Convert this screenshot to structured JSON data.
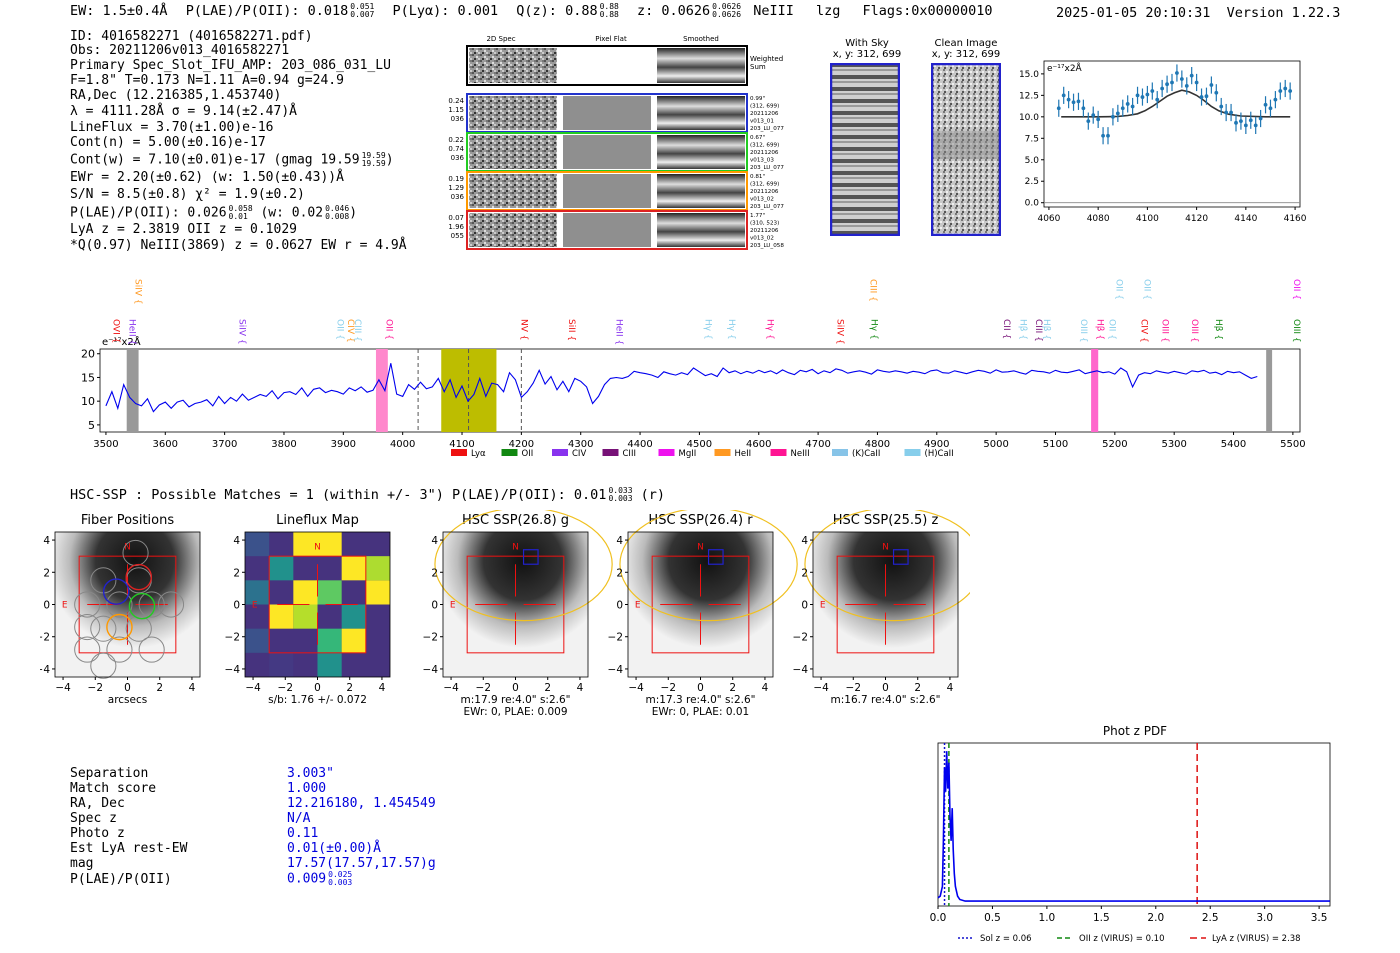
{
  "header": {
    "ew_prefix": "EW: 1.5±0.4Å",
    "plae_label": "P(LAE)/P(OII): 0.018",
    "plae_hi": "0.051",
    "plae_lo": "0.007",
    "plya": "P(Lyα): 0.001",
    "qz_label": "Q(z): 0.88",
    "qz_hi": "0.88",
    "qz_lo": "0.88",
    "z_label": "z: 0.0626",
    "z_hi": "0.0626",
    "z_lo": "0.0626",
    "line_name": "NeIII",
    "lzg": "lzg",
    "flags": "Flags:0x00000010",
    "datetime": "2025-01-05 20:10:31",
    "version": "Version 1.22.3"
  },
  "info": {
    "id": "ID: 4016582271 (4016582271.pdf)",
    "obs": "Obs: 20211206v013_4016582271",
    "primary": "Primary Spec_Slot_IFU_AMP: 203_086_031_LU",
    "fwhm": "F=1.8\"  T=0.173  N=1.11  A=0.94  g=24.9",
    "radec": "RA,Dec (12.216385,1.453740)",
    "lambda": "λ = 4111.28Å  σ = 9.14(±2.47)Å",
    "lineflux": "LineFlux = 3.70(±1.00)e-16",
    "contn": "Cont(n) = 5.00(±0.16)e-17",
    "contw": "Cont(w) = 7.10(±0.01)e-17 (gmag 19.59",
    "contw_hi": "19.59",
    "contw_lo": "19.59",
    "ewr": "EWr = 2.20(±0.62) (w: 1.50(±0.43))Å",
    "sn": "S/N = 8.5(±0.8)  χ² = 1.9(±0.2)",
    "plae": "P(LAE)/P(OII): 0.026",
    "plae_hi": "0.058",
    "plae_lo": "0.01",
    "plae_w": "(w: 0.02",
    "plae_w_hi": "0.046",
    "plae_w_lo": "0.008",
    "lya": "LyA z = 2.3819   OII z = 0.1029",
    "q": "*Q(0.97) NeIII(3869) z = 0.0627  EW r = 4.9Å"
  },
  "spec2d": {
    "col_headers": [
      "2D Spec",
      "Pixel Flat",
      "Smoothed"
    ],
    "weighted_label": "Weighted Sum",
    "rows": [
      {
        "left": [
          "0.24",
          "1.15",
          "036"
        ],
        "right": [
          "0.99\"",
          "(312, 699)",
          "20211206",
          "v013_01",
          "203_LU_077"
        ],
        "color": "#2233cc"
      },
      {
        "left": [
          "0.22",
          "0.74",
          "036"
        ],
        "right": [
          "0.67\"",
          "(312, 699)",
          "20211206",
          "v013_03",
          "203_LU_077"
        ],
        "color": "#22cc22"
      },
      {
        "left": [
          "0.19",
          "1.29",
          "036"
        ],
        "right": [
          "0.81\"",
          "(312, 699)",
          "20211206",
          "v013_02",
          "203_LU_077"
        ],
        "color": "#ff9900"
      },
      {
        "left": [
          "0.07",
          "1.96",
          "055"
        ],
        "right": [
          "1.77\"",
          "(310, 523)",
          "20211206",
          "v013_02",
          "203_LU_058"
        ],
        "color": "#dd2222"
      }
    ],
    "with_sky_title": "With Sky",
    "with_sky_sub": "x, y: 312, 699",
    "clean_title": "Clean Image",
    "clean_sub": "x, y: 312, 699"
  },
  "zoom_chart": {
    "unit_label": "e⁻¹⁷x2Å",
    "xticks": [
      "4060",
      "4080",
      "4100",
      "4120",
      "4140",
      "4160"
    ],
    "yticks": [
      "0.0",
      "2.5",
      "5.0",
      "7.5",
      "10.0",
      "12.5",
      "15.0"
    ]
  },
  "full_spectrum": {
    "unit_label": "e⁻¹⁷x2Å",
    "yticks": [
      "5",
      "10",
      "15",
      "20"
    ],
    "xticks": [
      "3500",
      "3600",
      "3700",
      "3800",
      "3900",
      "4000",
      "4100",
      "4200",
      "4300",
      "4400",
      "4500",
      "4600",
      "4700",
      "4800",
      "4900",
      "5000",
      "5100",
      "5200",
      "5300",
      "5400",
      "5500"
    ],
    "legend": [
      {
        "name": "Lyα",
        "color": "#ee1111"
      },
      {
        "name": "OII",
        "color": "#118811"
      },
      {
        "name": "CIV",
        "color": "#8833ee"
      },
      {
        "name": "CIII",
        "color": "#771177"
      },
      {
        "name": "MgII",
        "color": "#ee11ee"
      },
      {
        "name": "HeII",
        "color": "#ff9922"
      },
      {
        "name": "NeIII",
        "color": "#ff1493"
      },
      {
        "name": "(K)CaII",
        "color": "#87c4e8"
      },
      {
        "name": "(H)CaII",
        "color": "#87ceeb"
      }
    ],
    "line_labels": [
      {
        "text": "SiIV",
        "x": 3545,
        "row": 0,
        "color": "#ff9922"
      },
      {
        "text": "OVI",
        "x": 3508,
        "row": 1,
        "color": "#ee1111"
      },
      {
        "text": "HeII",
        "x": 3535,
        "row": 1,
        "color": "#8833ee"
      },
      {
        "text": "SiIV",
        "x": 3720,
        "row": 1,
        "color": "#8833ee"
      },
      {
        "text": "OII",
        "x": 3885,
        "row": 1,
        "color": "#87ceeb"
      },
      {
        "text": "CIV",
        "x": 3903,
        "row": 1,
        "color": "#ff9922"
      },
      {
        "text": "CIII",
        "x": 3915,
        "row": 1,
        "color": "#87ceeb"
      },
      {
        "text": "OII",
        "x": 3968,
        "row": 1,
        "color": "#ff1493"
      },
      {
        "text": "NV",
        "x": 4195,
        "row": 1,
        "color": "#ee1111"
      },
      {
        "text": "SiII",
        "x": 4275,
        "row": 1,
        "color": "#ee1111"
      },
      {
        "text": "HeII",
        "x": 4355,
        "row": 1,
        "color": "#8833ee"
      },
      {
        "text": "Hγ",
        "x": 4505,
        "row": 1,
        "color": "#87ceeb"
      },
      {
        "text": "Hγ",
        "x": 4545,
        "row": 1,
        "color": "#87ceeb"
      },
      {
        "text": "Hγ",
        "x": 4610,
        "row": 1,
        "color": "#ff1493"
      },
      {
        "text": "SiIV",
        "x": 4728,
        "row": 1,
        "color": "#ee1111"
      },
      {
        "text": "CIII",
        "x": 4783,
        "row": 0,
        "color": "#ff9922"
      },
      {
        "text": "Hγ",
        "x": 4785,
        "row": 1,
        "color": "#118811"
      },
      {
        "text": "CII",
        "x": 5008,
        "row": 1,
        "color": "#771177"
      },
      {
        "text": "Hβ",
        "x": 5036,
        "row": 1,
        "color": "#87ceeb"
      },
      {
        "text": "CIII",
        "x": 5062,
        "row": 1,
        "color": "#771177"
      },
      {
        "text": "Hβ",
        "x": 5076,
        "row": 1,
        "color": "#87ceeb"
      },
      {
        "text": "OIII",
        "x": 5138,
        "row": 1,
        "color": "#87ceeb"
      },
      {
        "text": "OII",
        "x": 5198,
        "row": 0,
        "color": "#87ceeb"
      },
      {
        "text": "Hβ",
        "x": 5166,
        "row": 1,
        "color": "#ff1493"
      },
      {
        "text": "OII",
        "x": 5186,
        "row": 1,
        "color": "#87ceeb"
      },
      {
        "text": "OII",
        "x": 5245,
        "row": 0,
        "color": "#87ceeb"
      },
      {
        "text": "CIV",
        "x": 5240,
        "row": 1,
        "color": "#ee1111"
      },
      {
        "text": "OIII",
        "x": 5275,
        "row": 1,
        "color": "#ff1493"
      },
      {
        "text": "OIII",
        "x": 5325,
        "row": 1,
        "color": "#ff1493"
      },
      {
        "text": "Hβ",
        "x": 5365,
        "row": 1,
        "color": "#118811"
      },
      {
        "text": "OII",
        "x": 5497,
        "row": 0,
        "color": "#ee11ee"
      },
      {
        "text": "OIII",
        "x": 5497,
        "row": 1,
        "color": "#118811"
      }
    ]
  },
  "hsc": {
    "header": "HSC-SSP : Possible Matches = 1 (within +/- 3\")  P(LAE)/P(OII): 0.01",
    "header_hi": "0.033",
    "header_lo": "0.003",
    "header_suffix": "(r)",
    "panels": [
      {
        "title": "Fiber Positions",
        "caption1": "arcsecs",
        "caption2": ""
      },
      {
        "title": "Lineflux Map",
        "caption1": "s/b: 1.76 +/- 0.072",
        "caption2": ""
      },
      {
        "title": "HSC SSP(26.8) g",
        "caption1": "m:17.9  re:4.0\"  s:2.6\"",
        "caption2": "EWr: 0, PLAE: 0.009"
      },
      {
        "title": "HSC SSP(26.4) r",
        "caption1": "m:17.3  re:4.0\"  s:2.6\"",
        "caption2": "EWr: 0, PLAE: 0.01"
      },
      {
        "title": "HSC SSP(25.5) z",
        "caption1": "m:16.7  re:4.0\"  s:2.6\"",
        "caption2": ""
      }
    ],
    "axis_ticks": [
      "−4",
      "−2",
      "0",
      "2",
      "4"
    ],
    "north": "N",
    "east": "E"
  },
  "match_table": [
    {
      "label": "Separation",
      "value": "3.003\""
    },
    {
      "label": "Match score",
      "value": "1.000"
    },
    {
      "label": "RA, Dec",
      "value": "12.216180, 1.454549"
    },
    {
      "label": "Spec z",
      "value": "N/A"
    },
    {
      "label": "Photo z",
      "value": "0.11"
    },
    {
      "label": "Est LyA rest-EW",
      "value": "0.01(±0.00)Å"
    },
    {
      "label": "mag",
      "value": "17.57(17.57,17.57)g"
    },
    {
      "label": "P(LAE)/P(OII)",
      "value": "0.009",
      "hi": "0.025",
      "lo": "0.003"
    }
  ],
  "photz": {
    "title": "Phot z PDF",
    "xticks": [
      "0.0",
      "0.5",
      "1.0",
      "1.5",
      "2.0",
      "2.5",
      "3.0",
      "3.5"
    ],
    "legend": [
      {
        "label": "Sol z = 0.06",
        "color": "#1111cc"
      },
      {
        "label": "OII z (VIRUS) = 0.10",
        "color": "#118811"
      },
      {
        "label": "LyA z (VIRUS) = 2.38",
        "color": "#dd1111"
      }
    ]
  },
  "chart_data": [
    {
      "type": "scatter",
      "title": "",
      "xlabel": "",
      "ylabel": "e⁻¹⁷x2Å",
      "xlim": [
        4058,
        4162
      ],
      "ylim": [
        -0.5,
        16.5
      ],
      "x": [
        4064,
        4066,
        4068,
        4070,
        4072,
        4074,
        4076,
        4078,
        4080,
        4082,
        4084,
        4086,
        4088,
        4090,
        4092,
        4094,
        4096,
        4098,
        4100,
        4102,
        4104,
        4106,
        4108,
        4110,
        4112,
        4114,
        4116,
        4118,
        4120,
        4122,
        4124,
        4126,
        4128,
        4130,
        4132,
        4134,
        4136,
        4138,
        4140,
        4142,
        4144,
        4146,
        4148,
        4150,
        4152,
        4154,
        4156,
        4158
      ],
      "y": [
        11.0,
        12.5,
        12.0,
        11.7,
        11.8,
        11.0,
        9.5,
        10.2,
        9.7,
        7.8,
        7.8,
        10.0,
        10.4,
        11.0,
        11.5,
        11.2,
        12.5,
        12.3,
        12.6,
        13.0,
        12.0,
        13.3,
        13.8,
        14.0,
        15.1,
        14.4,
        13.6,
        14.8,
        14.0,
        12.3,
        12.4,
        13.7,
        12.8,
        11.2,
        10.5,
        10.5,
        9.3,
        9.5,
        9.0,
        9.6,
        9.0,
        9.8,
        11.4,
        11.0,
        12.0,
        13.0,
        13.3,
        13.0
      ],
      "series": [
        {
          "name": "",
          "values": [
            10.0,
            10.0,
            10.0,
            10.0,
            10.02,
            10.05,
            10.15,
            10.35,
            10.7,
            11.2,
            11.8,
            12.4,
            12.8,
            13.1,
            12.9,
            12.5,
            11.9,
            11.2,
            10.7,
            10.3,
            10.1,
            10.0,
            10.0
          ]
        }
      ],
      "fit_x": [
        4065,
        4070,
        4075,
        4080,
        4084,
        4088,
        4092,
        4096,
        4099,
        4102,
        4105,
        4108,
        4111,
        4114,
        4117,
        4120,
        4123,
        4126,
        4129,
        4133,
        4138,
        4148,
        4158
      ]
    },
    {
      "type": "line",
      "title": "",
      "xlabel": "",
      "ylabel": "e⁻¹⁷x2Å",
      "xlim": [
        3490,
        5512
      ],
      "ylim": [
        3.5,
        21
      ],
      "x_start": 3500,
      "x_step": 10,
      "values": [
        9.0,
        12.0,
        8.5,
        13.5,
        10.8,
        9.5,
        9.0,
        10.5,
        7.8,
        9.2,
        9.8,
        8.5,
        9.8,
        10.2,
        8.8,
        9.5,
        9.8,
        10.3,
        9.0,
        11.0,
        9.5,
        10.8,
        10.0,
        11.5,
        10.2,
        10.8,
        11.4,
        11.0,
        12.2,
        10.5,
        11.8,
        12.0,
        11.4,
        12.8,
        11.0,
        12.5,
        12.8,
        11.8,
        12.3,
        12.0,
        11.5,
        12.8,
        12.2,
        13.0,
        11.9,
        12.3,
        14.5,
        12.2,
        18.0,
        11.5,
        11.0,
        13.5,
        12.5,
        14.0,
        12.6,
        13.0,
        14.8,
        12.0,
        14.5,
        10.8,
        13.2,
        10.0,
        11.4,
        14.8,
        11.0,
        13.8,
        13.5,
        12.0,
        16.0,
        14.5,
        10.8,
        12.0,
        13.8,
        16.5,
        13.6,
        15.2,
        12.4,
        14.2,
        12.0,
        14.8,
        14.2,
        13.0,
        9.5,
        11.0,
        13.5,
        14.8,
        15.0,
        14.8,
        15.2,
        16.3,
        16.0,
        15.8,
        15.5,
        15.0,
        16.2,
        15.8,
        15.5,
        16.0,
        15.6,
        17.0,
        16.2,
        15.4,
        15.8,
        15.2,
        17.0,
        16.0,
        16.4,
        15.8,
        16.3,
        15.9,
        16.5,
        16.0,
        16.4,
        15.8,
        16.6,
        16.0,
        15.6,
        16.5,
        16.2,
        16.7,
        15.8,
        16.4,
        16.0,
        16.8,
        16.5,
        15.9,
        16.2,
        16.4,
        16.1,
        15.7,
        16.6,
        16.3,
        16.1,
        16.4,
        16.2,
        15.9,
        16.3,
        16.1,
        15.8,
        16.4,
        16.6,
        16.0,
        15.9,
        16.4,
        16.1,
        15.8,
        16.2,
        16.5,
        16.3,
        15.9,
        16.6,
        16.1,
        16.2,
        16.4,
        16.0,
        15.7,
        16.5,
        16.3,
        16.2,
        15.9,
        16.5,
        16.1,
        16.0,
        16.3,
        16.6,
        15.8,
        16.1,
        16.4,
        16.0,
        16.2,
        15.7,
        17.0,
        16.2,
        13.0,
        15.5,
        16.0,
        15.8,
        16.4,
        16.1,
        15.9,
        16.3,
        16.0,
        15.7,
        16.4,
        16.2,
        16.5,
        15.9,
        16.1,
        15.6,
        16.3,
        16.0,
        16.2,
        15.5,
        14.8,
        15.2
      ]
    },
    {
      "type": "line",
      "title": "Phot z PDF",
      "xlabel": "",
      "ylabel": "",
      "xlim": [
        0,
        3.6
      ],
      "ylim": [
        0,
        1.0
      ],
      "x": [
        0.0,
        0.02,
        0.04,
        0.05,
        0.06,
        0.07,
        0.08,
        0.09,
        0.1,
        0.11,
        0.12,
        0.13,
        0.14,
        0.15,
        0.16,
        0.18,
        0.2,
        0.25,
        0.3,
        0.5,
        1.0,
        2.0,
        3.0,
        3.6
      ],
      "y": [
        0.05,
        0.06,
        0.12,
        0.4,
        0.85,
        0.7,
        0.95,
        0.72,
        0.88,
        0.55,
        0.4,
        0.6,
        0.35,
        0.2,
        0.12,
        0.06,
        0.04,
        0.03,
        0.03,
        0.03,
        0.03,
        0.03,
        0.03,
        0.03
      ],
      "vlines": [
        {
          "name": "Sol z",
          "value": 0.06
        },
        {
          "name": "OII z (VIRUS)",
          "value": 0.1
        },
        {
          "name": "LyA z (VIRUS)",
          "value": 2.38
        }
      ]
    }
  ]
}
